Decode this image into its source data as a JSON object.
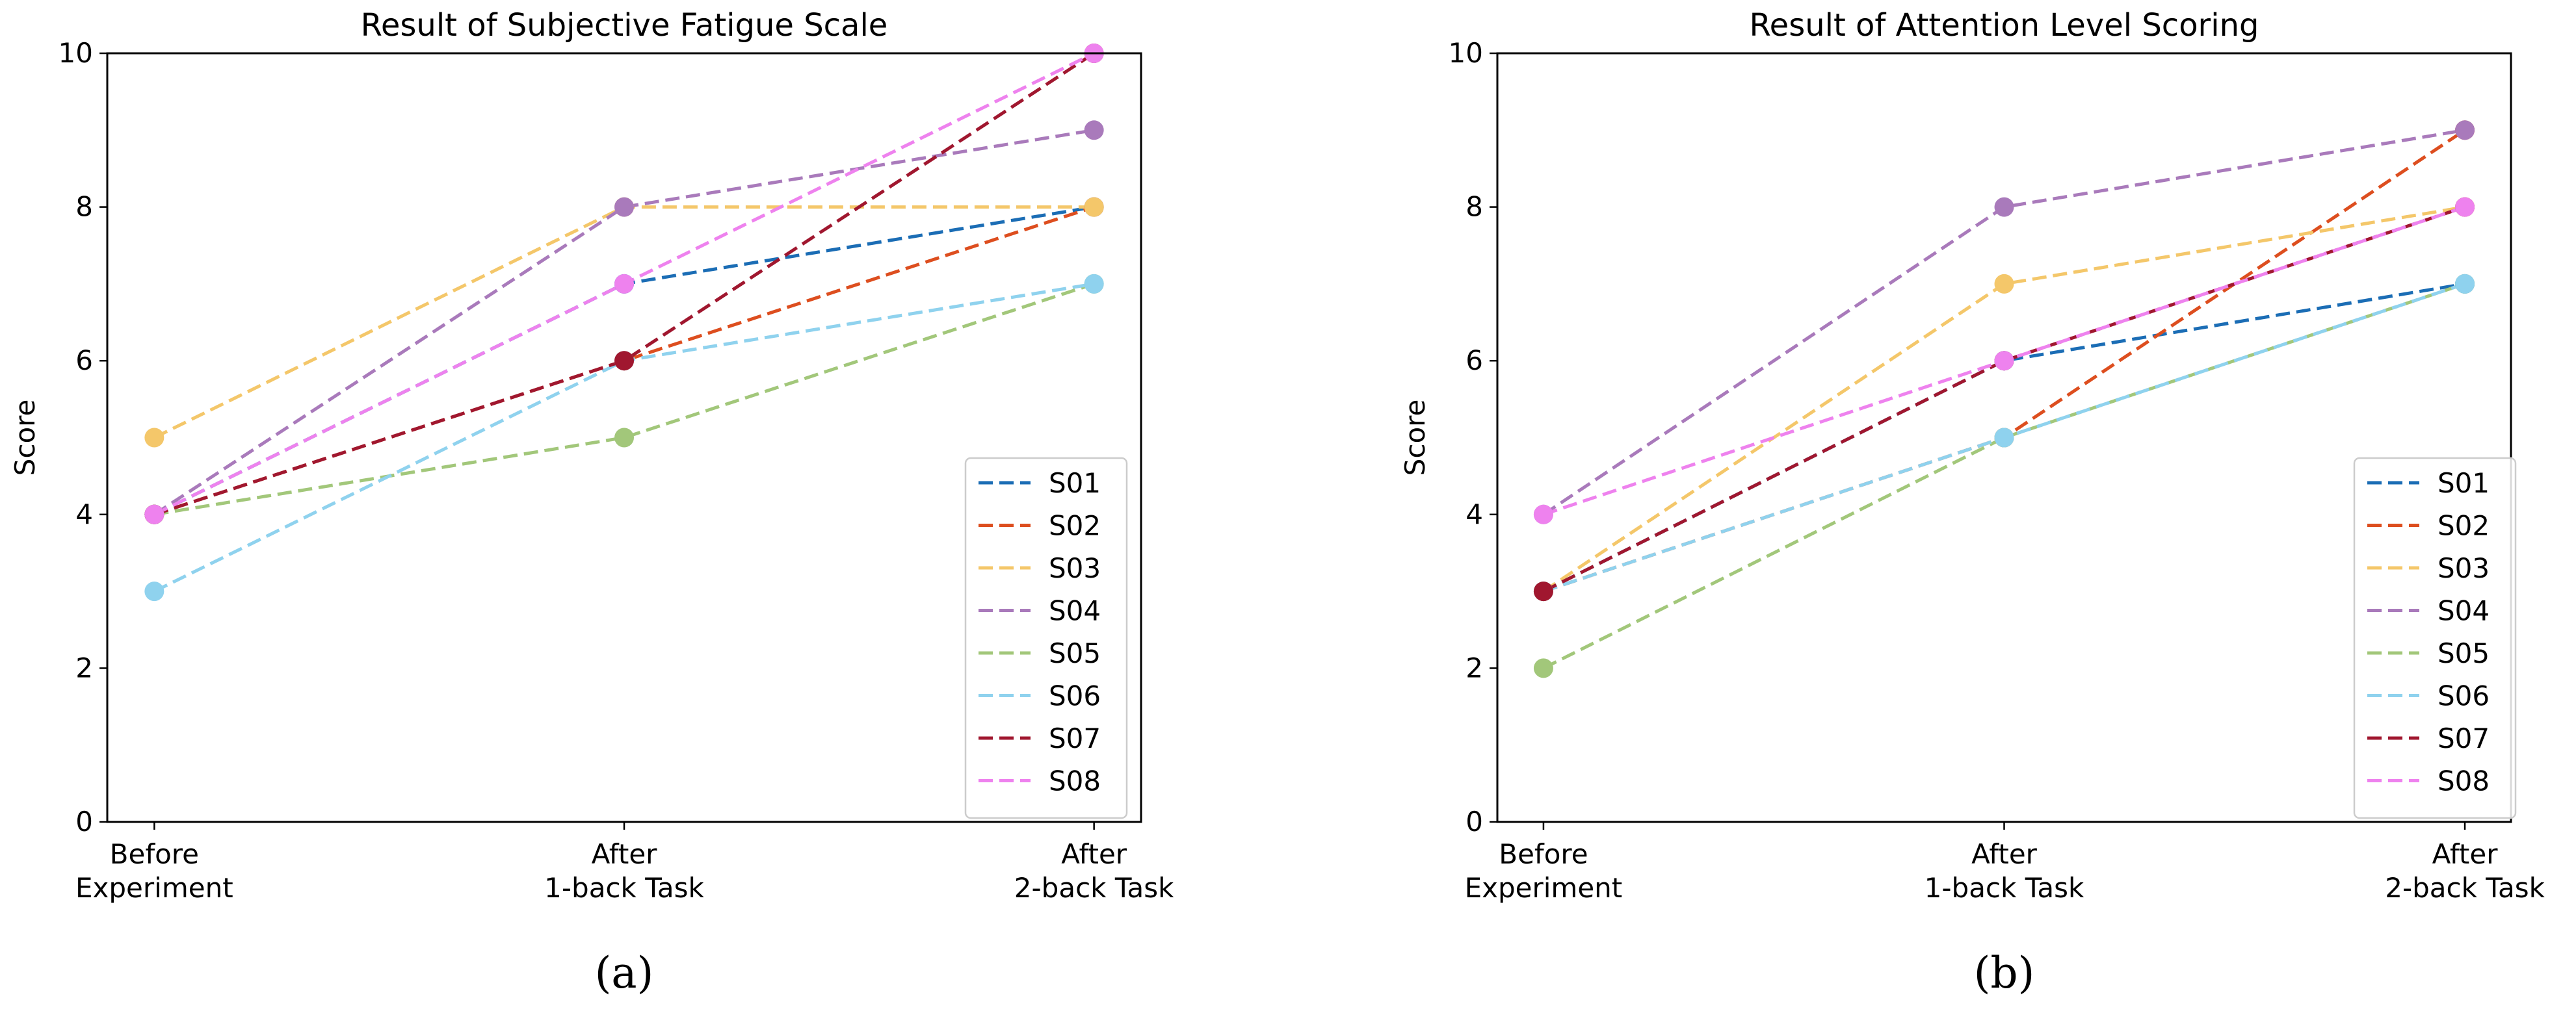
{
  "chart_data": [
    {
      "type": "line",
      "title": "Result of Subjective Fatigue Scale",
      "panel_label": "(a)",
      "xlabel": "",
      "ylabel": "Score",
      "ylim": [
        0,
        10
      ],
      "yticks": [
        "0",
        "2",
        "4",
        "6",
        "8",
        "10"
      ],
      "categories": [
        [
          "Before",
          "Experiment"
        ],
        [
          "After",
          "1-back Task"
        ],
        [
          "After",
          "2-back Task"
        ]
      ],
      "legend_position": "lower-right",
      "series": [
        {
          "name": "S01",
          "color": "#1b6db5",
          "values": [
            4,
            7,
            8
          ]
        },
        {
          "name": "S02",
          "color": "#dd4e1f",
          "values": [
            4,
            6,
            8
          ]
        },
        {
          "name": "S03",
          "color": "#f4c76a",
          "values": [
            5,
            8,
            8
          ]
        },
        {
          "name": "S04",
          "color": "#a97abb",
          "values": [
            4,
            8,
            9
          ]
        },
        {
          "name": "S05",
          "color": "#a2c77a",
          "values": [
            4,
            5,
            7
          ]
        },
        {
          "name": "S06",
          "color": "#8fd2ee",
          "values": [
            3,
            6,
            7
          ]
        },
        {
          "name": "S07",
          "color": "#a0172f",
          "values": [
            4,
            6,
            10
          ]
        },
        {
          "name": "S08",
          "color": "#ee82ee",
          "values": [
            4,
            7,
            10
          ]
        }
      ]
    },
    {
      "type": "line",
      "title": "Result of Attention Level Scoring",
      "panel_label": "(b)",
      "xlabel": "",
      "ylabel": "Score",
      "ylim": [
        0,
        10
      ],
      "yticks": [
        "0",
        "2",
        "4",
        "6",
        "8",
        "10"
      ],
      "categories": [
        [
          "Before",
          "Experiment"
        ],
        [
          "After",
          "1-back Task"
        ],
        [
          "After",
          "2-back Task"
        ]
      ],
      "legend_position": "lower-right",
      "series": [
        {
          "name": "S01",
          "color": "#1b6db5",
          "values": [
            3,
            6,
            7
          ]
        },
        {
          "name": "S02",
          "color": "#dd4e1f",
          "values": [
            3,
            5,
            9
          ]
        },
        {
          "name": "S03",
          "color": "#f4c76a",
          "values": [
            3,
            7,
            8
          ]
        },
        {
          "name": "S04",
          "color": "#a97abb",
          "values": [
            4,
            8,
            9
          ]
        },
        {
          "name": "S05",
          "color": "#a2c77a",
          "values": [
            2,
            5,
            7
          ]
        },
        {
          "name": "S06",
          "color": "#8fd2ee",
          "values": [
            3,
            5,
            7
          ]
        },
        {
          "name": "S07",
          "color": "#a0172f",
          "values": [
            3,
            6,
            8
          ]
        },
        {
          "name": "S08",
          "color": "#ee82ee",
          "values": [
            4,
            6,
            8
          ]
        }
      ]
    }
  ]
}
